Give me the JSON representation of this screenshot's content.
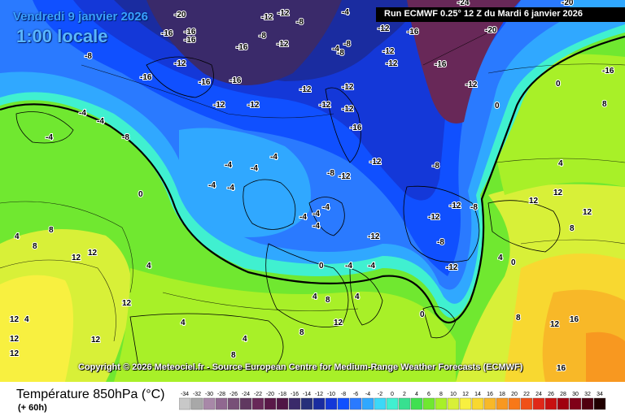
{
  "header": {
    "date_label": "Vendredi 9 janvier 2026",
    "time_label": "1:00 locale",
    "run_label": "Run ECMWF 0.25° 12 Z du Mardi 6 janvier 2026"
  },
  "footer": {
    "copyright": "Copyright © 2026 Meteociel.fr - Source European Centre for Medium-Range Weather Forecasts (ECMWF)",
    "parameter": "Température 850hPa (°C)",
    "forecast_step": "(+ 60h)"
  },
  "legend": {
    "unit": "°C",
    "values": [
      "-34",
      "-32",
      "-30",
      "-28",
      "-26",
      "-24",
      "-22",
      "-20",
      "-18",
      "-16",
      "-14",
      "-12",
      "-10",
      "-8",
      "-6",
      "-4",
      "-2",
      "0",
      "2",
      "4",
      "6",
      "8",
      "10",
      "12",
      "14",
      "16",
      "18",
      "20",
      "22",
      "24",
      "26",
      "28",
      "30",
      "32",
      "34"
    ],
    "colors": [
      "#c8c8c8",
      "#a8a8a8",
      "#a888a8",
      "#906890",
      "#785078",
      "#603860",
      "#682858",
      "#5a1848",
      "#501545",
      "#3a2a6a",
      "#26307a",
      "#1a2ca0",
      "#1438d8",
      "#1050ff",
      "#2a7aff",
      "#30a8ff",
      "#3cd8f8",
      "#40f0d0",
      "#38e090",
      "#40e050",
      "#70e830",
      "#a8f028",
      "#d8f038",
      "#f8f040",
      "#f8d830",
      "#f8b828",
      "#f89820",
      "#f87818",
      "#f05018",
      "#e02818",
      "#c81010",
      "#a00010",
      "#800018",
      "#500010",
      "#200000"
    ]
  },
  "map": {
    "labels": [
      {
        "id": "t01",
        "text": "-20"
      },
      {
        "id": "t02",
        "text": "-12"
      },
      {
        "id": "t03",
        "text": "-16"
      },
      {
        "id": "t04",
        "text": "-16"
      },
      {
        "id": "t05",
        "text": "-8"
      },
      {
        "id": "t06",
        "text": "-12"
      },
      {
        "id": "t07",
        "text": "-8"
      },
      {
        "id": "t08",
        "text": "-4"
      },
      {
        "id": "t09",
        "text": "-12"
      },
      {
        "id": "t10",
        "text": "-16"
      },
      {
        "id": "t11",
        "text": "-20"
      },
      {
        "id": "t12",
        "text": "-8"
      },
      {
        "id": "t13",
        "text": "-16"
      },
      {
        "id": "t14",
        "text": "-12"
      },
      {
        "id": "t15",
        "text": "-8"
      },
      {
        "id": "t16",
        "text": "-4"
      },
      {
        "id": "t17",
        "text": "-8"
      },
      {
        "id": "t18",
        "text": "-12"
      },
      {
        "id": "t19",
        "text": "-12"
      },
      {
        "id": "t20",
        "text": "-16"
      },
      {
        "id": "t21",
        "text": "-12"
      },
      {
        "id": "t22",
        "text": "-16"
      },
      {
        "id": "t23",
        "text": "-12"
      },
      {
        "id": "t24",
        "text": "-16"
      },
      {
        "id": "t25",
        "text": "-16"
      },
      {
        "id": "t26",
        "text": "-12"
      },
      {
        "id": "t27",
        "text": "-12"
      },
      {
        "id": "t28",
        "text": "-12"
      },
      {
        "id": "t29",
        "text": "-12"
      },
      {
        "id": "t30",
        "text": "-12"
      },
      {
        "id": "t31",
        "text": "-4"
      },
      {
        "id": "t32",
        "text": "-4"
      },
      {
        "id": "t33",
        "text": "-16"
      },
      {
        "id": "t34",
        "text": "-12"
      },
      {
        "id": "t35",
        "text": "-4"
      },
      {
        "id": "t36",
        "text": "-4"
      },
      {
        "id": "t37",
        "text": "-8"
      },
      {
        "id": "t38",
        "text": "-12"
      },
      {
        "id": "t39",
        "text": "-12"
      },
      {
        "id": "t40",
        "text": "-4"
      },
      {
        "id": "t41",
        "text": "-8"
      },
      {
        "id": "t42",
        "text": "-12"
      },
      {
        "id": "t43",
        "text": "-8"
      },
      {
        "id": "t44",
        "text": "-12"
      },
      {
        "id": "t45",
        "text": "-4"
      },
      {
        "id": "t46",
        "text": "-4"
      },
      {
        "id": "t47",
        "text": "-4"
      },
      {
        "id": "t48",
        "text": "-4"
      },
      {
        "id": "t49",
        "text": "-4"
      },
      {
        "id": "t50",
        "text": "0"
      },
      {
        "id": "t51",
        "text": "-4"
      },
      {
        "id": "t52",
        "text": "-4"
      },
      {
        "id": "t53",
        "text": "-8"
      },
      {
        "id": "t54",
        "text": "-12"
      },
      {
        "id": "t55",
        "text": "0"
      },
      {
        "id": "t56",
        "text": "0"
      },
      {
        "id": "t57",
        "text": "0"
      },
      {
        "id": "t58",
        "text": "8"
      },
      {
        "id": "t59",
        "text": "4"
      },
      {
        "id": "t60",
        "text": "8"
      },
      {
        "id": "t61",
        "text": "12"
      },
      {
        "id": "t62",
        "text": "12"
      },
      {
        "id": "t63",
        "text": "4"
      },
      {
        "id": "t64",
        "text": "12"
      },
      {
        "id": "t65",
        "text": "12"
      },
      {
        "id": "t66",
        "text": "12"
      },
      {
        "id": "t67",
        "text": "12"
      },
      {
        "id": "t68",
        "text": "12"
      },
      {
        "id": "t69",
        "text": "12"
      },
      {
        "id": "t70",
        "text": "8"
      },
      {
        "id": "t71",
        "text": "4"
      },
      {
        "id": "t72",
        "text": "4"
      },
      {
        "id": "t73",
        "text": "4"
      },
      {
        "id": "t74",
        "text": "4"
      },
      {
        "id": "t75",
        "text": "4"
      },
      {
        "id": "t76",
        "text": "8"
      },
      {
        "id": "t77",
        "text": "12"
      },
      {
        "id": "t78",
        "text": "8"
      },
      {
        "id": "t79",
        "text": "16"
      },
      {
        "id": "t80",
        "text": "12"
      },
      {
        "id": "t81",
        "text": "16"
      },
      {
        "id": "t82",
        "text": "12"
      },
      {
        "id": "t83",
        "text": "12"
      },
      {
        "id": "t84",
        "text": "-8"
      },
      {
        "id": "t85",
        "text": "-4"
      },
      {
        "id": "t86",
        "text": "0"
      },
      {
        "id": "t87",
        "text": "0"
      },
      {
        "id": "t88",
        "text": "8"
      },
      {
        "id": "t89",
        "text": "4"
      },
      {
        "id": "t90",
        "text": "-16"
      },
      {
        "id": "t91",
        "text": "-24"
      },
      {
        "id": "t92",
        "text": "-20"
      },
      {
        "id": "t93",
        "text": "-16"
      },
      {
        "id": "t94",
        "text": "-12"
      },
      {
        "id": "t95",
        "text": "4"
      },
      {
        "id": "t96",
        "text": "8"
      },
      {
        "id": "t97",
        "text": "-4"
      },
      {
        "id": "t98",
        "text": "8"
      }
    ]
  }
}
